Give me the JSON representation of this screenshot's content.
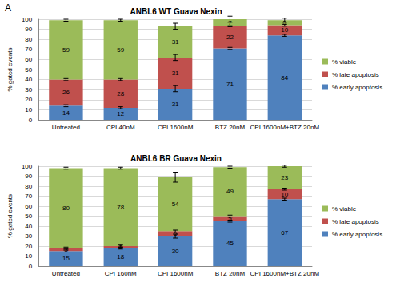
{
  "chart_data": [
    {
      "type": "bar",
      "title": "ANBL6 WT Guava Nexin",
      "annotations": [
        "A"
      ],
      "y_label": "% gated events",
      "categories": [
        "Untreated",
        "CPI 40nM",
        "CPI 1600nM",
        "BTZ 20nM",
        "CPI 1600nM+BTZ 20nM"
      ],
      "series": [
        {
          "name": "% early apoptosis",
          "color": "#4f81bd",
          "values": [
            14,
            12,
            31,
            71,
            84
          ],
          "errors": [
            1,
            1,
            3,
            1,
            1
          ]
        },
        {
          "name": "% late apoptosis",
          "color": "#c0504d",
          "values": [
            26,
            28,
            31,
            22,
            10
          ],
          "errors": [
            1,
            1,
            3,
            0.5,
            1
          ]
        },
        {
          "name": "% viable",
          "color": "#9bbb59",
          "values": [
            59,
            59,
            31,
            7,
            5
          ],
          "errors": [
            1,
            1,
            3,
            3,
            2
          ]
        }
      ],
      "ylim": [
        0,
        100
      ],
      "yticks": [
        0,
        10,
        20,
        30,
        40,
        50,
        60,
        70,
        80,
        90,
        100
      ],
      "grid": true,
      "stacked": true,
      "data_labels": true,
      "legend": "right"
    },
    {
      "type": "bar",
      "title": "ANBL6 BR Guava Nexin",
      "y_label": "% gated events",
      "categories": [
        "Untreated",
        "CPI 160nM",
        "CPI 1600nM",
        "BTZ 20nM",
        "CPI 1600nM+BTZ 20nM"
      ],
      "series": [
        {
          "name": "% early apoptosis",
          "color": "#4f81bd",
          "values": [
            15,
            18,
            30,
            45,
            67
          ],
          "errors": [
            1,
            1,
            2,
            1,
            1
          ]
        },
        {
          "name": "% late apoptosis",
          "color": "#c0504d",
          "values": [
            3,
            2,
            5,
            5,
            10
          ],
          "errors": [
            1,
            1,
            1,
            1,
            1
          ]
        },
        {
          "name": "% viable",
          "color": "#9bbb59",
          "values": [
            80,
            78,
            54,
            49,
            23
          ],
          "errors": [
            1,
            1,
            5,
            1,
            1
          ]
        }
      ],
      "ylim": [
        0,
        100
      ],
      "yticks": [
        0,
        10,
        20,
        30,
        40,
        50,
        60,
        70,
        80,
        90,
        100
      ],
      "grid": true,
      "stacked": true,
      "data_labels": true,
      "legend": "right"
    }
  ]
}
